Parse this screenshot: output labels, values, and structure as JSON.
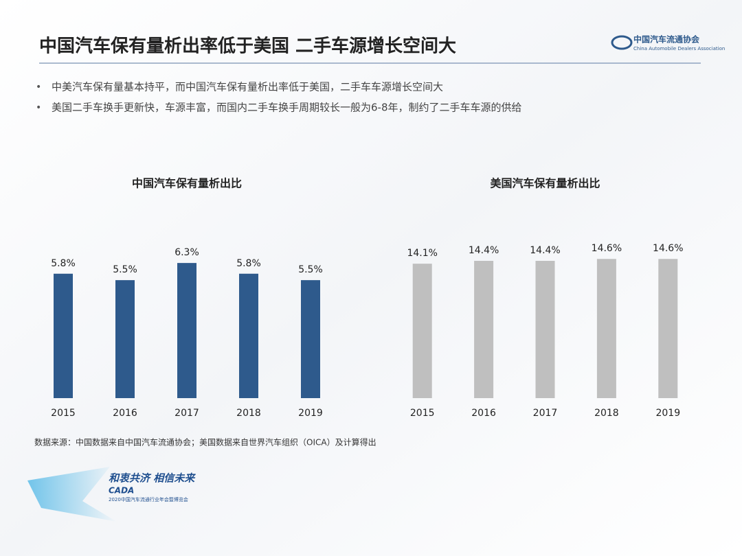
{
  "header": {
    "title": "中国汽车保有量析出率低于美国 二手车源增长空间大",
    "logo": "中国汽车流通协会",
    "logo_en": "China Automobile Dealers Association"
  },
  "bullets": [
    "中美汽车保有量基本持平，而中国汽车保有量析出率低于美国，二手车车源增长空间大",
    "美国二手车换手更新快，车源丰富，而国内二手车换手周期较长一般为6-8年，制约了二手车车源的供给"
  ],
  "chart_data": [
    {
      "type": "bar",
      "title": "中国汽车保有量析出比",
      "categories": [
        "2015",
        "2016",
        "2017",
        "2018",
        "2019"
      ],
      "values": [
        5.8,
        5.5,
        6.3,
        5.8,
        5.5
      ],
      "value_labels": [
        "5.8%",
        "5.5%",
        "6.3%",
        "5.8%",
        "5.5%"
      ],
      "color": "#2e5a8c",
      "ylim": [
        0,
        8
      ]
    },
    {
      "type": "bar",
      "title": "美国汽车保有量析出比",
      "categories": [
        "2015",
        "2016",
        "2017",
        "2018",
        "2019"
      ],
      "values": [
        14.1,
        14.4,
        14.4,
        14.6,
        14.6
      ],
      "value_labels": [
        "14.1%",
        "14.4%",
        "14.4%",
        "14.6%",
        "14.6%"
      ],
      "color": "#bfbfbf",
      "ylim": [
        0,
        18
      ]
    }
  ],
  "source": "数据来源：中国数据来自中国汽车流通协会；美国数据来自世界汽车组织（OICA）及计算得出",
  "footer": {
    "slogan": "和衷共济 相信未来",
    "brand": "CADA",
    "event": "2020中国汽车流通行业年会暨博览会"
  }
}
